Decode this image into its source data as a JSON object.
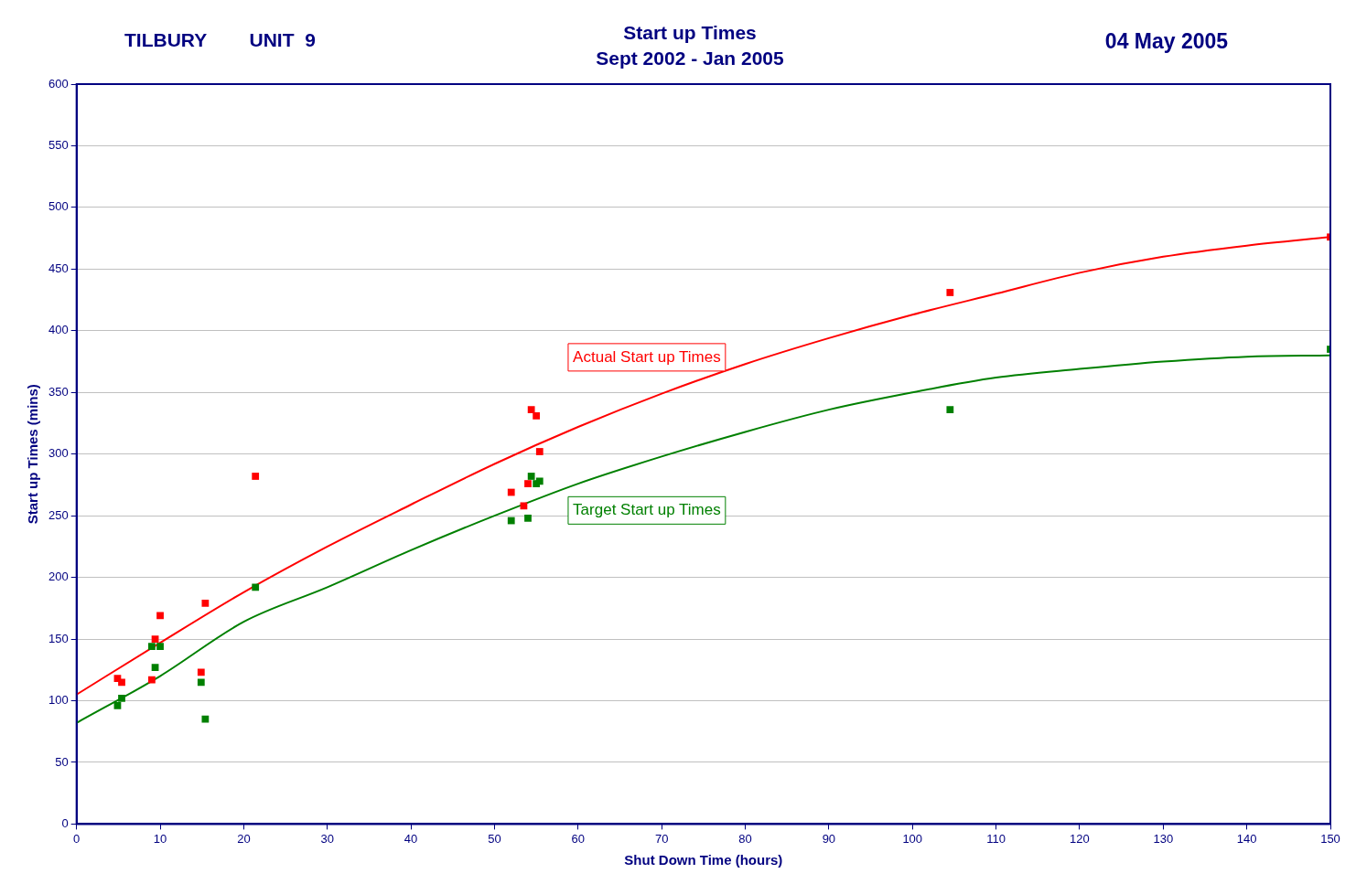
{
  "chart_data": {
    "type": "scatter",
    "title": "Start up Times",
    "subtitle": "Sept 2002 - Jan 2005",
    "xlabel": "Shut Down Time (hours)",
    "ylabel": "Start up Times (mins)",
    "annotations": [
      "TILBURY        UNIT  9",
      "04 May 2005"
    ],
    "xlim": [
      0,
      150
    ],
    "xticks": [
      0,
      10,
      20,
      30,
      40,
      50,
      60,
      70,
      80,
      90,
      100,
      110,
      120,
      130,
      140,
      150
    ],
    "ylim": [
      0,
      600
    ],
    "yticks": [
      0,
      50,
      100,
      150,
      200,
      250,
      300,
      350,
      400,
      450,
      500,
      550,
      600
    ],
    "grid": "y",
    "legend": false,
    "marker": "square",
    "series": [
      {
        "color": "#ff0000",
        "x": [
          4.9,
          5.4,
          9.0,
          9.4,
          10.0,
          14.9,
          15.4,
          21.4,
          52.0,
          53.5,
          54.0,
          54.4,
          55.0,
          55.4,
          104.5,
          150
        ],
        "values": [
          118,
          115,
          117,
          150,
          169,
          123,
          179,
          282,
          269,
          258,
          276,
          336,
          331,
          302,
          431,
          476
        ]
      },
      {
        "color": "#008000",
        "x": [
          4.9,
          5.4,
          9.0,
          9.4,
          10.0,
          14.9,
          15.4,
          21.4,
          52.0,
          54.0,
          54.4,
          55.0,
          55.4,
          104.5,
          150
        ],
        "values": [
          96,
          102,
          144,
          127,
          144,
          115,
          85,
          192,
          246,
          248,
          282,
          276,
          278,
          336,
          385
        ]
      },
      {
        "type": "line",
        "name": "Actual Start up Times",
        "color": "#ff0000",
        "marker": "none",
        "x": [
          0,
          10,
          20,
          30,
          40,
          50,
          60,
          70,
          80,
          90,
          100,
          110,
          120,
          130,
          140,
          150
        ],
        "values": [
          105,
          147,
          188,
          225,
          259,
          292,
          322,
          349,
          373,
          394,
          413,
          430,
          447,
          460,
          469,
          476
        ]
      },
      {
        "type": "line",
        "name": "Target Start up Times",
        "color": "#008000",
        "marker": "none",
        "x": [
          0,
          10,
          20,
          30,
          40,
          50,
          60,
          70,
          80,
          90,
          100,
          110,
          120,
          130,
          140,
          150
        ],
        "values": [
          82,
          120,
          164,
          192,
          222,
          250,
          276,
          298,
          318,
          336,
          350,
          362,
          369,
          375,
          379,
          380
        ]
      }
    ]
  }
}
